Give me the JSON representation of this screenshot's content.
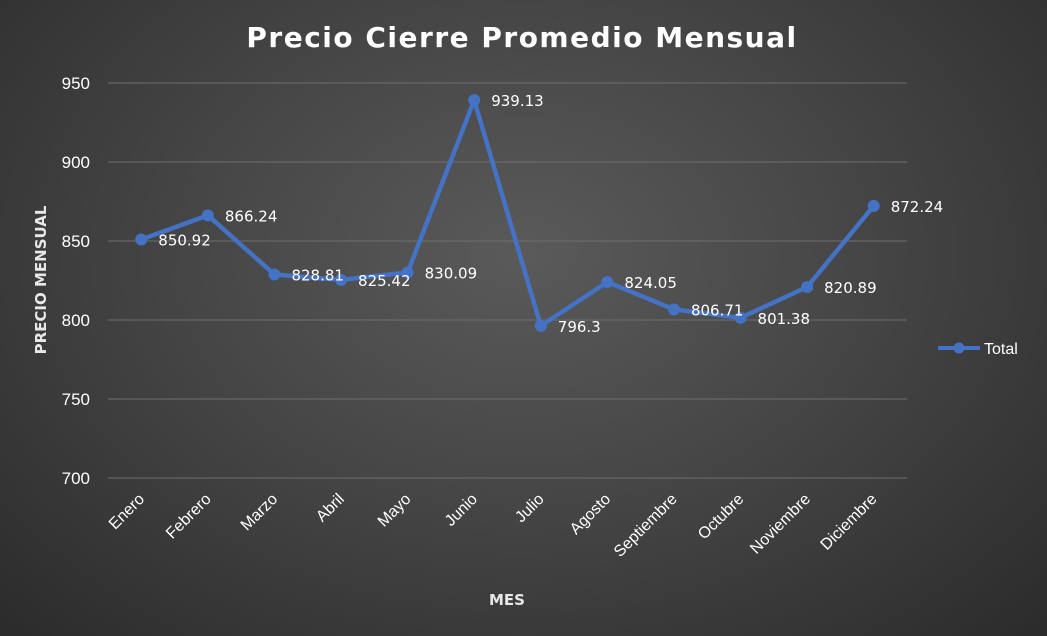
{
  "chart_data": {
    "type": "line",
    "title": "Precio Cierre Promedio Mensual",
    "xlabel": "MES",
    "ylabel": "PRECIO MENSUAL",
    "categories": [
      "Enero",
      "Febrero",
      "Marzo",
      "Abril",
      "Mayo",
      "Junio",
      "Julio",
      "Agosto",
      "Septiembre",
      "Octubre",
      "Noviembre",
      "Diciembre"
    ],
    "series": [
      {
        "name": "Total",
        "values": [
          850.92,
          866.24,
          828.81,
          825.42,
          830.09,
          939.13,
          796.3,
          824.05,
          806.71,
          801.38,
          820.89,
          872.24
        ],
        "data_labels": [
          "850.92",
          "866.24",
          "828.81",
          "825.42",
          "830.09",
          "939.13",
          "796.3",
          "824.05",
          "806.71",
          "801.38",
          "820.89",
          "872.24"
        ]
      }
    ],
    "ylim": [
      700,
      950
    ],
    "yticks": [
      {
        "value": 700,
        "label": "700"
      },
      {
        "value": 750,
        "label": "750"
      },
      {
        "value": 800,
        "label": "800"
      },
      {
        "value": 850,
        "label": "850"
      },
      {
        "value": 900,
        "label": "900"
      },
      {
        "value": 950,
        "label": "950"
      }
    ],
    "grid": true,
    "legend_position": "right",
    "colors": {
      "series": "#4472c4",
      "marker": "#4472c4",
      "gridline": "#6e6e6e",
      "text": "#ffffff"
    }
  }
}
